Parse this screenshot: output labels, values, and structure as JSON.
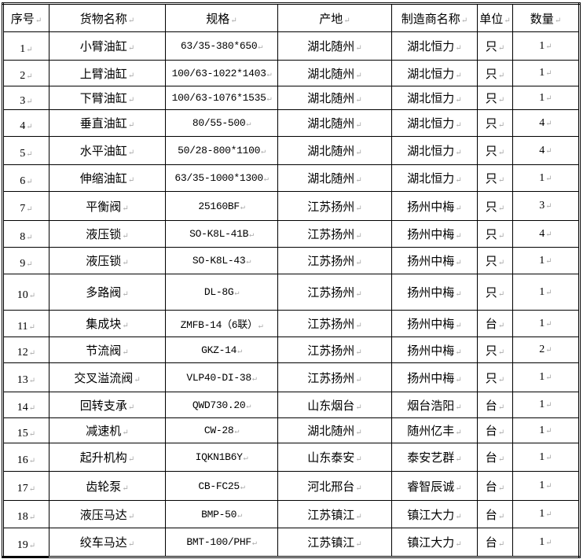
{
  "table": {
    "headers": [
      "序号",
      "货物名称",
      "规格",
      "产地",
      "制造商名称",
      "单位",
      "数量"
    ],
    "rows": [
      [
        "1",
        "小臂油缸",
        "63/35-380*650",
        "湖北随州",
        "湖北恒力",
        "只",
        "1"
      ],
      [
        "2",
        "上臂油缸",
        "100/63-1022*1403",
        "湖北随州",
        "湖北恒力",
        "只",
        "1"
      ],
      [
        "3",
        "下臂油缸",
        "100/63-1076*1535",
        "湖北随州",
        "湖北恒力",
        "只",
        "1"
      ],
      [
        "4",
        "垂直油缸",
        "80/55-500",
        "湖北随州",
        "湖北恒力",
        "只",
        "4"
      ],
      [
        "5",
        "水平油缸",
        "50/28-800*1100",
        "湖北随州",
        "湖北恒力",
        "只",
        "4"
      ],
      [
        "6",
        "伸缩油缸",
        "63/35-1000*1300",
        "湖北随州",
        "湖北恒力",
        "只",
        "1"
      ],
      [
        "7",
        "平衡阀",
        "25160BF",
        "江苏扬州",
        "扬州中梅",
        "只",
        "3"
      ],
      [
        "8",
        "液压锁",
        "SO-K8L-41B",
        "江苏扬州",
        "扬州中梅",
        "只",
        "4"
      ],
      [
        "9",
        "液压锁",
        "SO-K8L-43",
        "江苏扬州",
        "扬州中梅",
        "只",
        "1"
      ],
      [
        "10",
        "多路阀",
        "DL-8G",
        "江苏扬州",
        "扬州中梅",
        "只",
        "1"
      ],
      [
        "11",
        "集成块",
        "ZMFB-14（6联）",
        "江苏扬州",
        "扬州中梅",
        "台",
        "1"
      ],
      [
        "12",
        "节流阀",
        "GKZ-14",
        "江苏扬州",
        "扬州中梅",
        "只",
        "2"
      ],
      [
        "13",
        "交叉溢流阀",
        "VLP40-DI-38",
        "江苏扬州",
        "扬州中梅",
        "只",
        "1"
      ],
      [
        "14",
        "回转支承",
        "QWD730.20",
        "山东烟台",
        "烟台浩阳",
        "台",
        "1"
      ],
      [
        "15",
        "减速机",
        "CW-28",
        "湖北随州",
        "随州亿丰",
        "台",
        "1"
      ],
      [
        "16",
        "起升机构",
        "IQKN1B6Y",
        "山东泰安",
        "泰安艺群",
        "台",
        "1"
      ],
      [
        "17",
        "齿轮泵",
        "CB-FC25",
        "河北邢台",
        "睿智辰诚",
        "台",
        "1"
      ],
      [
        "18",
        "液压马达",
        "BMP-50",
        "江苏镇江",
        "镇江大力",
        "台",
        "1"
      ],
      [
        "19",
        "绞车马达",
        "BMT-100/PHF",
        "江苏镇江",
        "镇江大力",
        "台",
        "1"
      ]
    ]
  }
}
